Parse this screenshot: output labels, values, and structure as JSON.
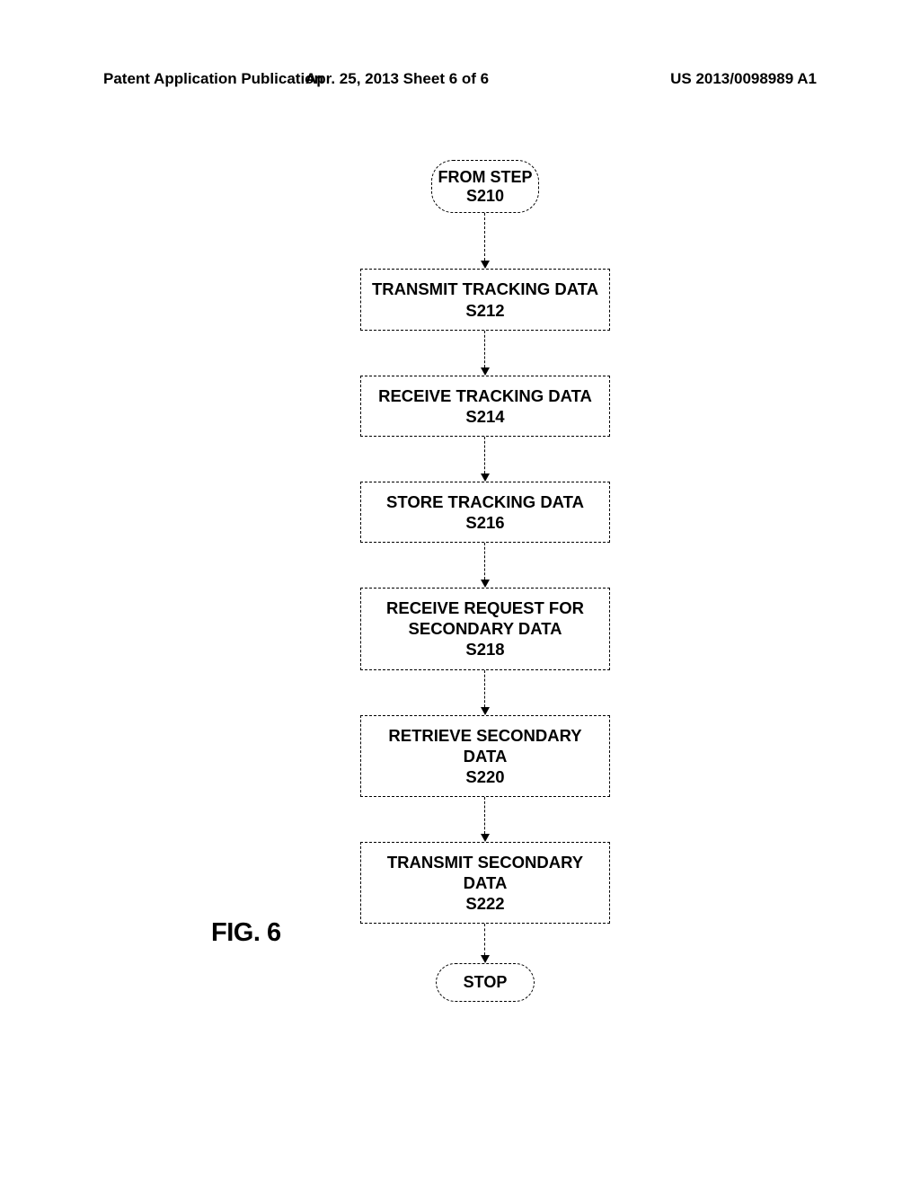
{
  "header": {
    "left": "Patent Application Publication",
    "center": "Apr. 25, 2013  Sheet 6 of 6",
    "right": "US 2013/0098989 A1"
  },
  "figure_label": "FIG. 6",
  "flowchart": {
    "type": "flowchart",
    "background_color": "#ffffff",
    "border_color": "#000000",
    "border_style": "dashed",
    "border_width": 1.5,
    "text_color": "#000000",
    "node_font_weight": 900,
    "node_font_size": 18.5,
    "terminal_radius": 24,
    "connector_lengths": [
      62,
      50,
      50,
      50,
      50,
      50,
      44
    ],
    "arrow_head_size": 9,
    "nodes": [
      {
        "id": "start",
        "shape": "terminal",
        "line1": "FROM STEP",
        "line2": "S210"
      },
      {
        "id": "s212",
        "shape": "process",
        "line1": "TRANSMIT TRACKING DATA",
        "line2": "S212"
      },
      {
        "id": "s214",
        "shape": "process",
        "line1": "RECEIVE TRACKING DATA",
        "line2": "S214"
      },
      {
        "id": "s216",
        "shape": "process",
        "line1": "STORE TRACKING DATA",
        "line2": "S216"
      },
      {
        "id": "s218",
        "shape": "process",
        "line1": "RECEIVE REQUEST FOR",
        "line2": "SECONDARY DATA",
        "line3": "S218"
      },
      {
        "id": "s220",
        "shape": "process",
        "line1": "RETRIEVE SECONDARY DATA",
        "line2": "S220"
      },
      {
        "id": "s222",
        "shape": "process",
        "line1": "TRANSMIT SECONDARY DATA",
        "line2": "S222"
      },
      {
        "id": "stop",
        "shape": "terminal",
        "line1": "STOP"
      }
    ],
    "edges": [
      [
        "start",
        "s212"
      ],
      [
        "s212",
        "s214"
      ],
      [
        "s214",
        "s216"
      ],
      [
        "s216",
        "s218"
      ],
      [
        "s218",
        "s220"
      ],
      [
        "s220",
        "s222"
      ],
      [
        "s222",
        "stop"
      ]
    ]
  }
}
